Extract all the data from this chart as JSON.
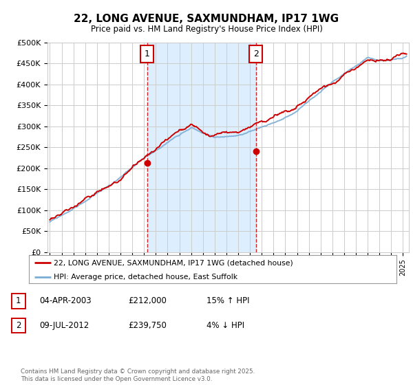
{
  "title": "22, LONG AVENUE, SAXMUNDHAM, IP17 1WG",
  "subtitle": "Price paid vs. HM Land Registry's House Price Index (HPI)",
  "ylabel_ticks": [
    "£0",
    "£50K",
    "£100K",
    "£150K",
    "£200K",
    "£250K",
    "£300K",
    "£350K",
    "£400K",
    "£450K",
    "£500K"
  ],
  "ytick_vals": [
    0,
    50000,
    100000,
    150000,
    200000,
    250000,
    300000,
    350000,
    400000,
    450000,
    500000
  ],
  "xlim_start": 1994.8,
  "xlim_end": 2025.5,
  "ylim": [
    0,
    500000
  ],
  "marker1_year": 2003.25,
  "marker2_year": 2012.5,
  "marker1_val": 212000,
  "marker2_val": 239750,
  "legend1": "22, LONG AVENUE, SAXMUNDHAM, IP17 1WG (detached house)",
  "legend2": "HPI: Average price, detached house, East Suffolk",
  "table_data": [
    {
      "num": "1",
      "date": "04-APR-2003",
      "price": "£212,000",
      "pct": "15% ↑ HPI"
    },
    {
      "num": "2",
      "date": "09-JUL-2012",
      "price": "£239,750",
      "pct": "4% ↓ HPI"
    }
  ],
  "footer": "Contains HM Land Registry data © Crown copyright and database right 2025.\nThis data is licensed under the Open Government Licence v3.0.",
  "red_color": "#cc0000",
  "blue_color": "#7aadd4",
  "background_color": "#ffffff",
  "grid_color": "#cccccc",
  "shade_color": "#ddeeff"
}
